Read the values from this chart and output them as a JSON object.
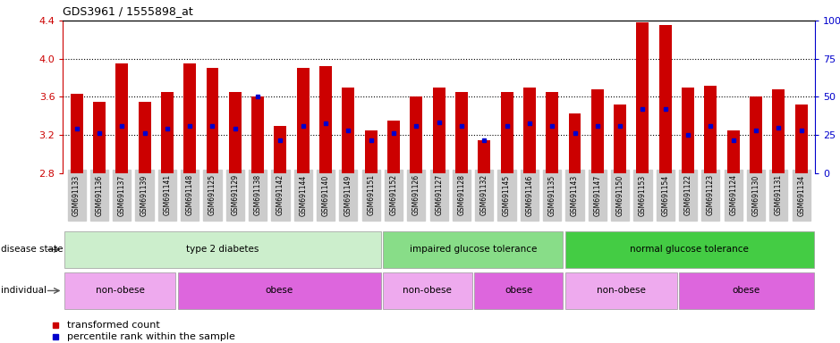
{
  "title": "GDS3961 / 1555898_at",
  "samples": [
    "GSM691133",
    "GSM691136",
    "GSM691137",
    "GSM691139",
    "GSM691141",
    "GSM691148",
    "GSM691125",
    "GSM691129",
    "GSM691138",
    "GSM691142",
    "GSM691144",
    "GSM691140",
    "GSM691149",
    "GSM691151",
    "GSM691152",
    "GSM691126",
    "GSM691127",
    "GSM691128",
    "GSM691132",
    "GSM691145",
    "GSM691146",
    "GSM691135",
    "GSM691143",
    "GSM691147",
    "GSM691150",
    "GSM691153",
    "GSM691154",
    "GSM691122",
    "GSM691123",
    "GSM691124",
    "GSM691130",
    "GSM691131",
    "GSM691134"
  ],
  "bar_values": [
    3.63,
    3.55,
    3.95,
    3.55,
    3.65,
    3.95,
    3.9,
    3.65,
    3.6,
    3.3,
    3.9,
    3.92,
    3.7,
    3.25,
    3.35,
    3.6,
    3.7,
    3.65,
    3.15,
    3.65,
    3.7,
    3.65,
    3.43,
    3.68,
    3.52,
    4.38,
    4.35,
    3.7,
    3.72,
    3.25,
    3.6,
    3.68,
    3.52
  ],
  "percentile_values": [
    3.27,
    3.22,
    3.3,
    3.22,
    3.27,
    3.3,
    3.3,
    3.27,
    3.6,
    3.15,
    3.3,
    3.32,
    3.25,
    3.15,
    3.22,
    3.3,
    3.33,
    3.3,
    3.15,
    3.3,
    3.32,
    3.3,
    3.22,
    3.3,
    3.3,
    3.47,
    3.47,
    3.2,
    3.3,
    3.15,
    3.25,
    3.28,
    3.25
  ],
  "ymin": 2.8,
  "ymax": 4.4,
  "yticks_left": [
    2.8,
    3.2,
    3.6,
    4.0,
    4.4
  ],
  "yticks_right": [
    0,
    25,
    50,
    75,
    100
  ],
  "bar_color": "#cc0000",
  "percentile_color": "#0000cc",
  "grid_lines": [
    3.2,
    3.6,
    4.0
  ],
  "disease_state_groups": [
    {
      "label": "type 2 diabetes",
      "start": 0,
      "end": 14,
      "color": "#cceecc"
    },
    {
      "label": "impaired glucose tolerance",
      "start": 14,
      "end": 22,
      "color": "#88dd88"
    },
    {
      "label": "normal glucose tolerance",
      "start": 22,
      "end": 33,
      "color": "#44cc44"
    }
  ],
  "individual_groups": [
    {
      "label": "non-obese",
      "start": 0,
      "end": 5,
      "color": "#eeaaee"
    },
    {
      "label": "obese",
      "start": 5,
      "end": 14,
      "color": "#dd66dd"
    },
    {
      "label": "non-obese",
      "start": 14,
      "end": 18,
      "color": "#eeaaee"
    },
    {
      "label": "obese",
      "start": 18,
      "end": 22,
      "color": "#dd66dd"
    },
    {
      "label": "non-obese",
      "start": 22,
      "end": 27,
      "color": "#eeaaee"
    },
    {
      "label": "obese",
      "start": 27,
      "end": 33,
      "color": "#dd66dd"
    }
  ],
  "legend_item_1": "transformed count",
  "legend_item_2": "percentile rank within the sample",
  "disease_state_label": "disease state",
  "individual_label": "individual",
  "left_axis_color": "#cc0000",
  "right_axis_color": "#0000cc"
}
